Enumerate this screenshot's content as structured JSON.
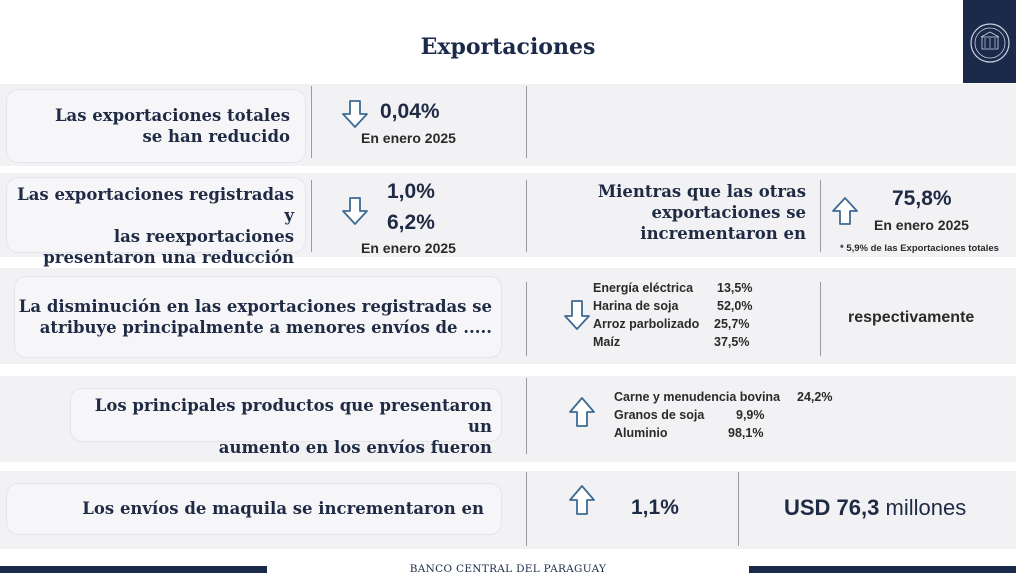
{
  "title": "Exportaciones",
  "footer": "BANCO CENTRAL DEL PARAGUAY",
  "logo": {
    "icon": "bcp-seal-icon"
  },
  "row1": {
    "label_line1": "Las exportaciones totales",
    "label_line2": "se han reducido",
    "arrow": "down",
    "value": "0,04%",
    "period": "En enero 2025"
  },
  "row2": {
    "label_line1": "Las exportaciones registradas y",
    "label_line2": "las reexportaciones",
    "label_line3": "presentaron una reducción del",
    "arrow": "down",
    "value1": "1,0%",
    "value2": "6,2%",
    "period": "En enero 2025",
    "right_line1": "Mientras que las otras",
    "right_line2": "exportaciones se",
    "right_line3": "incrementaron en",
    "right_arrow": "up",
    "right_value": "75,8%",
    "right_period": "En enero 2025",
    "right_note": "* 5,9% de las Exportaciones totales"
  },
  "row3": {
    "label_line1": "La disminución en las exportaciones registradas se",
    "label_line2": "atribuye principalmente a menores envíos de .....",
    "arrow": "down",
    "items": [
      {
        "name": "Energía eléctrica",
        "value": "13,5%"
      },
      {
        "name": "Harina de soja",
        "value": "52,0%"
      },
      {
        "name": "Arroz parbolizado",
        "value": "25,7%"
      },
      {
        "name": "Maíz",
        "value": "37,5%"
      }
    ],
    "suffix": "respectivamente"
  },
  "row4": {
    "label_line1": "Los principales productos que presentaron un",
    "label_line2": "aumento en los envíos fueron",
    "arrow": "up",
    "items": [
      {
        "name": "Carne y menudencia bovina",
        "value": "24,2%"
      },
      {
        "name": "Granos de soja",
        "value": "9,9%"
      },
      {
        "name": "Aluminio",
        "value": "98,1%"
      }
    ]
  },
  "row5": {
    "label": "Los envíos de maquila se incrementaron en",
    "arrow": "up",
    "value": "1,1%",
    "amount_bold": "USD 76,3",
    "amount_unit": "millones"
  },
  "colors": {
    "navy": "#1b2a4a",
    "band": "#f2f2f4",
    "arrow": "#3d6b93"
  }
}
